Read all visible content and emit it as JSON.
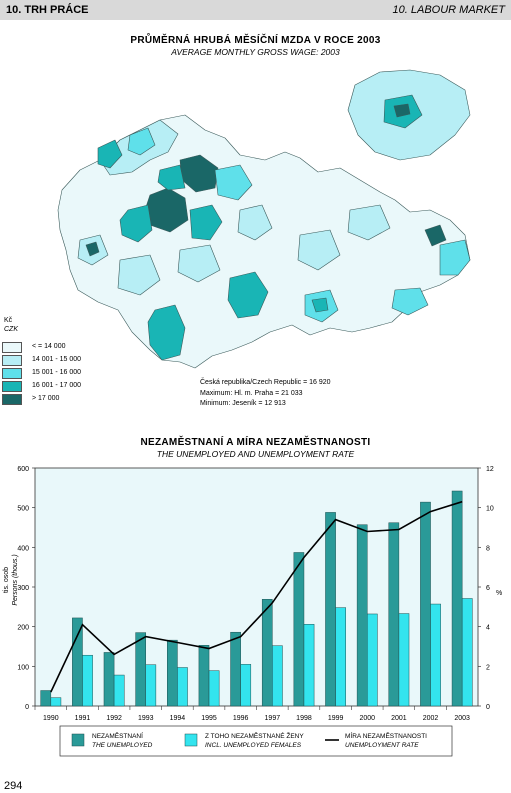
{
  "header": {
    "left": "10. TRH PRÁCE",
    "right": "10. LABOUR MARKET"
  },
  "map": {
    "title": "PRŮMĚRNÁ HRUBÁ MĚSÍČNÍ MZDA V ROCE 2003",
    "subtitle": "AVERAGE MONTHLY GROSS WAGE: 2003",
    "unit_cz": "Kč",
    "unit_en": "CZK",
    "legend": [
      {
        "label": "< = 14 000",
        "color": "#eaf8fa"
      },
      {
        "label": "14 001 - 15 000",
        "color": "#b7eef5"
      },
      {
        "label": "15 001 - 16 000",
        "color": "#5fe0ea"
      },
      {
        "label": "16 001 - 17 000",
        "color": "#19b5b5"
      },
      {
        "label": "> 17 000",
        "color": "#1a6767"
      }
    ],
    "stats": {
      "line1": "Česká republika/Czech Republic  =  16 920",
      "line2": "Maximum:  Hl. m. Praha  =  21 033",
      "line3": "Minimum:  Jeseník  =  12 913"
    }
  },
  "chart_title": "NEZAMĚSTNANÍ A MÍRA NEZAMĚSTNANOSTI",
  "chart_subtitle": "THE UNEMPLOYED AND UNEMPLOYMENT RATE",
  "chart_data": {
    "type": "bar",
    "categories": [
      "1990",
      "1991",
      "1992",
      "1993",
      "1994",
      "1995",
      "1996",
      "1997",
      "1998",
      "1999",
      "2000",
      "2001",
      "2002",
      "2003"
    ],
    "series": [
      {
        "name": "NEZAMĚSTNANÍ",
        "name_en": "THE UNEMPLOYED",
        "type": "bar",
        "axis": "left",
        "color": "#2a9a98",
        "values": [
          39,
          222,
          135,
          185,
          166,
          153,
          186,
          269,
          387,
          488,
          457,
          462,
          514,
          542
        ]
      },
      {
        "name": "Z TOHO NEZAMĚSTNANÉ ŽENY",
        "name_en": "INCL. UNEMPLOYED FEMALES",
        "type": "bar",
        "axis": "left",
        "color": "#33e4ee",
        "values": [
          21,
          128,
          78,
          104,
          97,
          89,
          105,
          152,
          206,
          248,
          232,
          233,
          257,
          271
        ]
      },
      {
        "name": "MÍRA NEZAMĚSTNANOSTI",
        "name_en": "UNEMPLOYMENT RATE",
        "type": "line",
        "axis": "right",
        "color": "#000000",
        "values": [
          0.7,
          4.1,
          2.6,
          3.5,
          3.2,
          2.9,
          3.5,
          5.2,
          7.5,
          9.4,
          8.8,
          8.9,
          9.8,
          10.3
        ]
      }
    ],
    "ylabel": "tis. osob",
    "ylabel_en": "Persons (thous.)",
    "ylabel_right": "%",
    "ylim": [
      0,
      600
    ],
    "yticks": [
      0,
      100,
      200,
      300,
      400,
      500,
      600
    ],
    "ylim_right": [
      0,
      12
    ],
    "yticks_right": [
      0,
      2,
      4,
      6,
      8,
      10,
      12
    ],
    "grid": false,
    "background": "#e9f8fa",
    "legend_position": "bottom"
  },
  "page_number": "294"
}
